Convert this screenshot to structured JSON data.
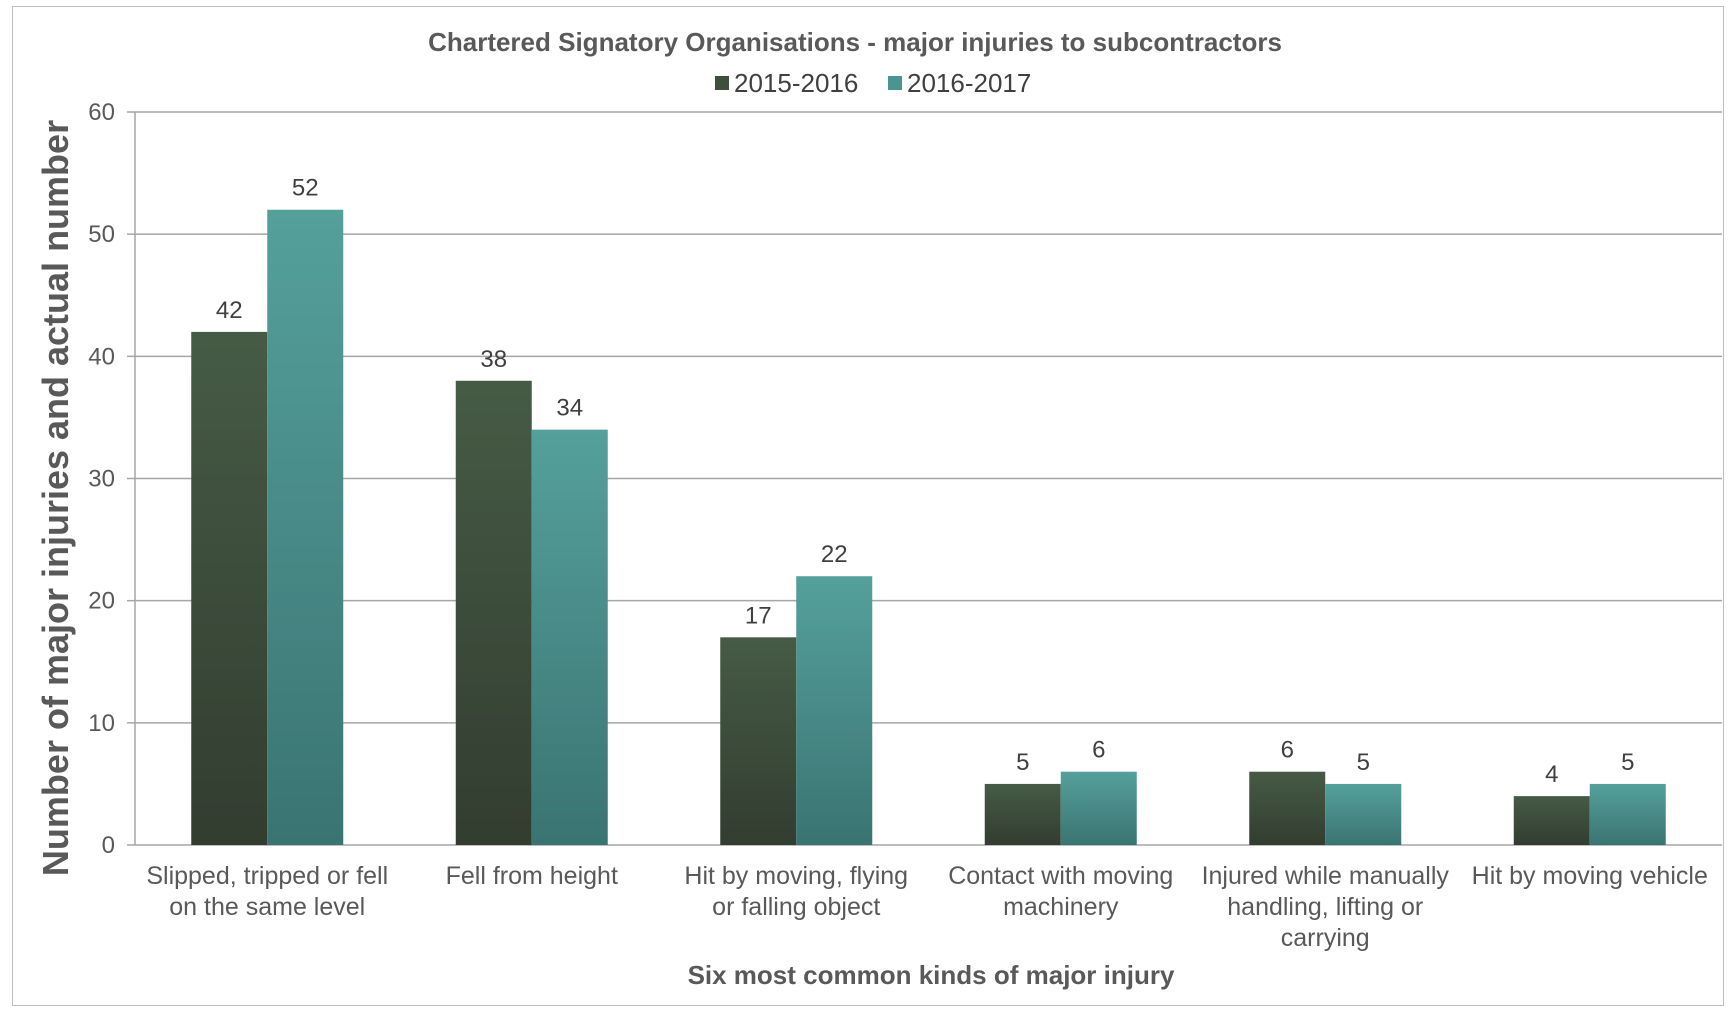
{
  "chart_data": {
    "type": "bar",
    "title": "Chartered Signatory Organisations - major injuries to subcontractors",
    "xlabel": "Six most common kinds of major injury",
    "ylabel": "Number of major injuries and actual number",
    "ylim": [
      0,
      60
    ],
    "yticks": [
      "0",
      "10",
      "20",
      "30",
      "40",
      "50",
      "60"
    ],
    "grid": true,
    "legend_position": "top",
    "categories": [
      [
        "Slipped, tripped or fell",
        "on the same level"
      ],
      [
        "Fell from height"
      ],
      [
        "Hit by moving, flying",
        "or falling object"
      ],
      [
        "Contact with moving",
        "machinery"
      ],
      [
        "Injured while manually",
        "handling, lifting or",
        "carrying"
      ],
      [
        "Hit by moving vehicle"
      ]
    ],
    "series": [
      {
        "name": "2015-2016",
        "color": "#3f4f3d",
        "values": [
          42,
          38,
          17,
          5,
          6,
          4
        ]
      },
      {
        "name": "2016-2017",
        "color": "#4a9491",
        "values": [
          52,
          34,
          22,
          6,
          5,
          5
        ]
      }
    ]
  }
}
